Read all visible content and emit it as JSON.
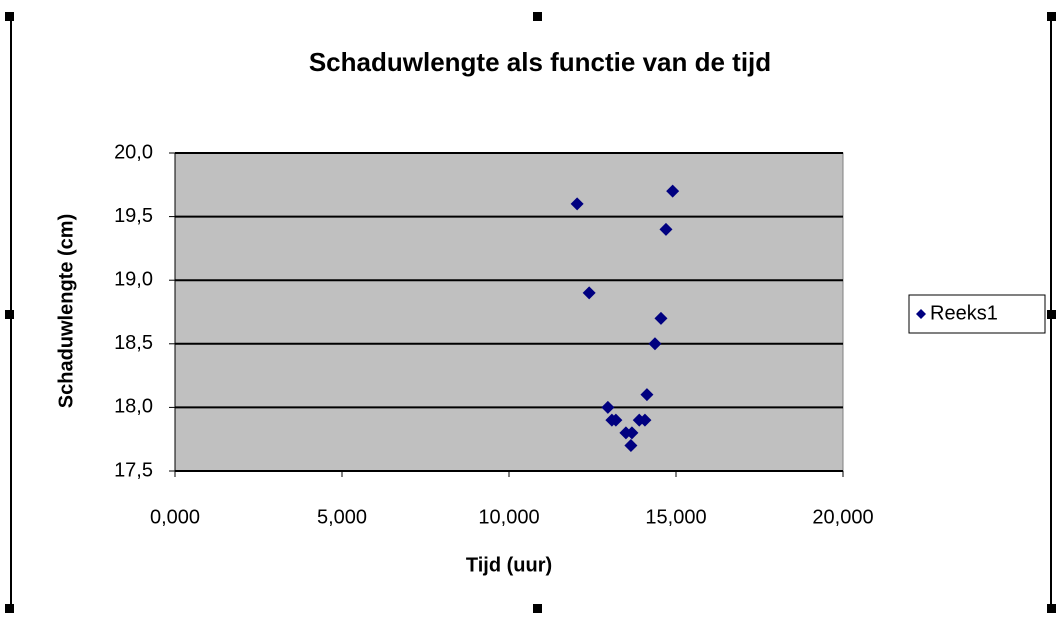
{
  "chart_data": {
    "type": "scatter",
    "title": "Schaduwlengte als functie van de tijd",
    "xlabel": "Tijd (uur)",
    "ylabel": "Schaduwlengte (cm)",
    "series": [
      {
        "name": "Reeks1",
        "color": "#000080",
        "x": [
          12.04,
          12.4,
          12.96,
          13.08,
          13.2,
          13.5,
          13.68,
          13.65,
          13.9,
          14.07,
          14.13,
          14.37,
          14.55,
          14.7,
          14.9
        ],
        "values": [
          19.6,
          18.9,
          18.0,
          17.9,
          17.9,
          17.8,
          17.8,
          17.7,
          17.9,
          17.9,
          18.1,
          18.5,
          18.7,
          19.4,
          19.7
        ]
      }
    ],
    "xlim": [
      0,
      20
    ],
    "xticks": [
      {
        "value": 0,
        "label": "0,000"
      },
      {
        "value": 5,
        "label": "5,000"
      },
      {
        "value": 10,
        "label": "10,000"
      },
      {
        "value": 15,
        "label": "15,000"
      },
      {
        "value": 20,
        "label": "20,000"
      }
    ],
    "ylim": [
      17.5,
      20
    ],
    "yticks": [
      {
        "value": 17.5,
        "label": "17,5"
      },
      {
        "value": 18,
        "label": "18,0"
      },
      {
        "value": 18.5,
        "label": "18,5"
      },
      {
        "value": 19,
        "label": "19,0"
      },
      {
        "value": 19.5,
        "label": "19,5"
      },
      {
        "value": 20,
        "label": "20,0"
      }
    ],
    "grid": true,
    "plot_background": "#c0c0c0",
    "legend": "right"
  }
}
